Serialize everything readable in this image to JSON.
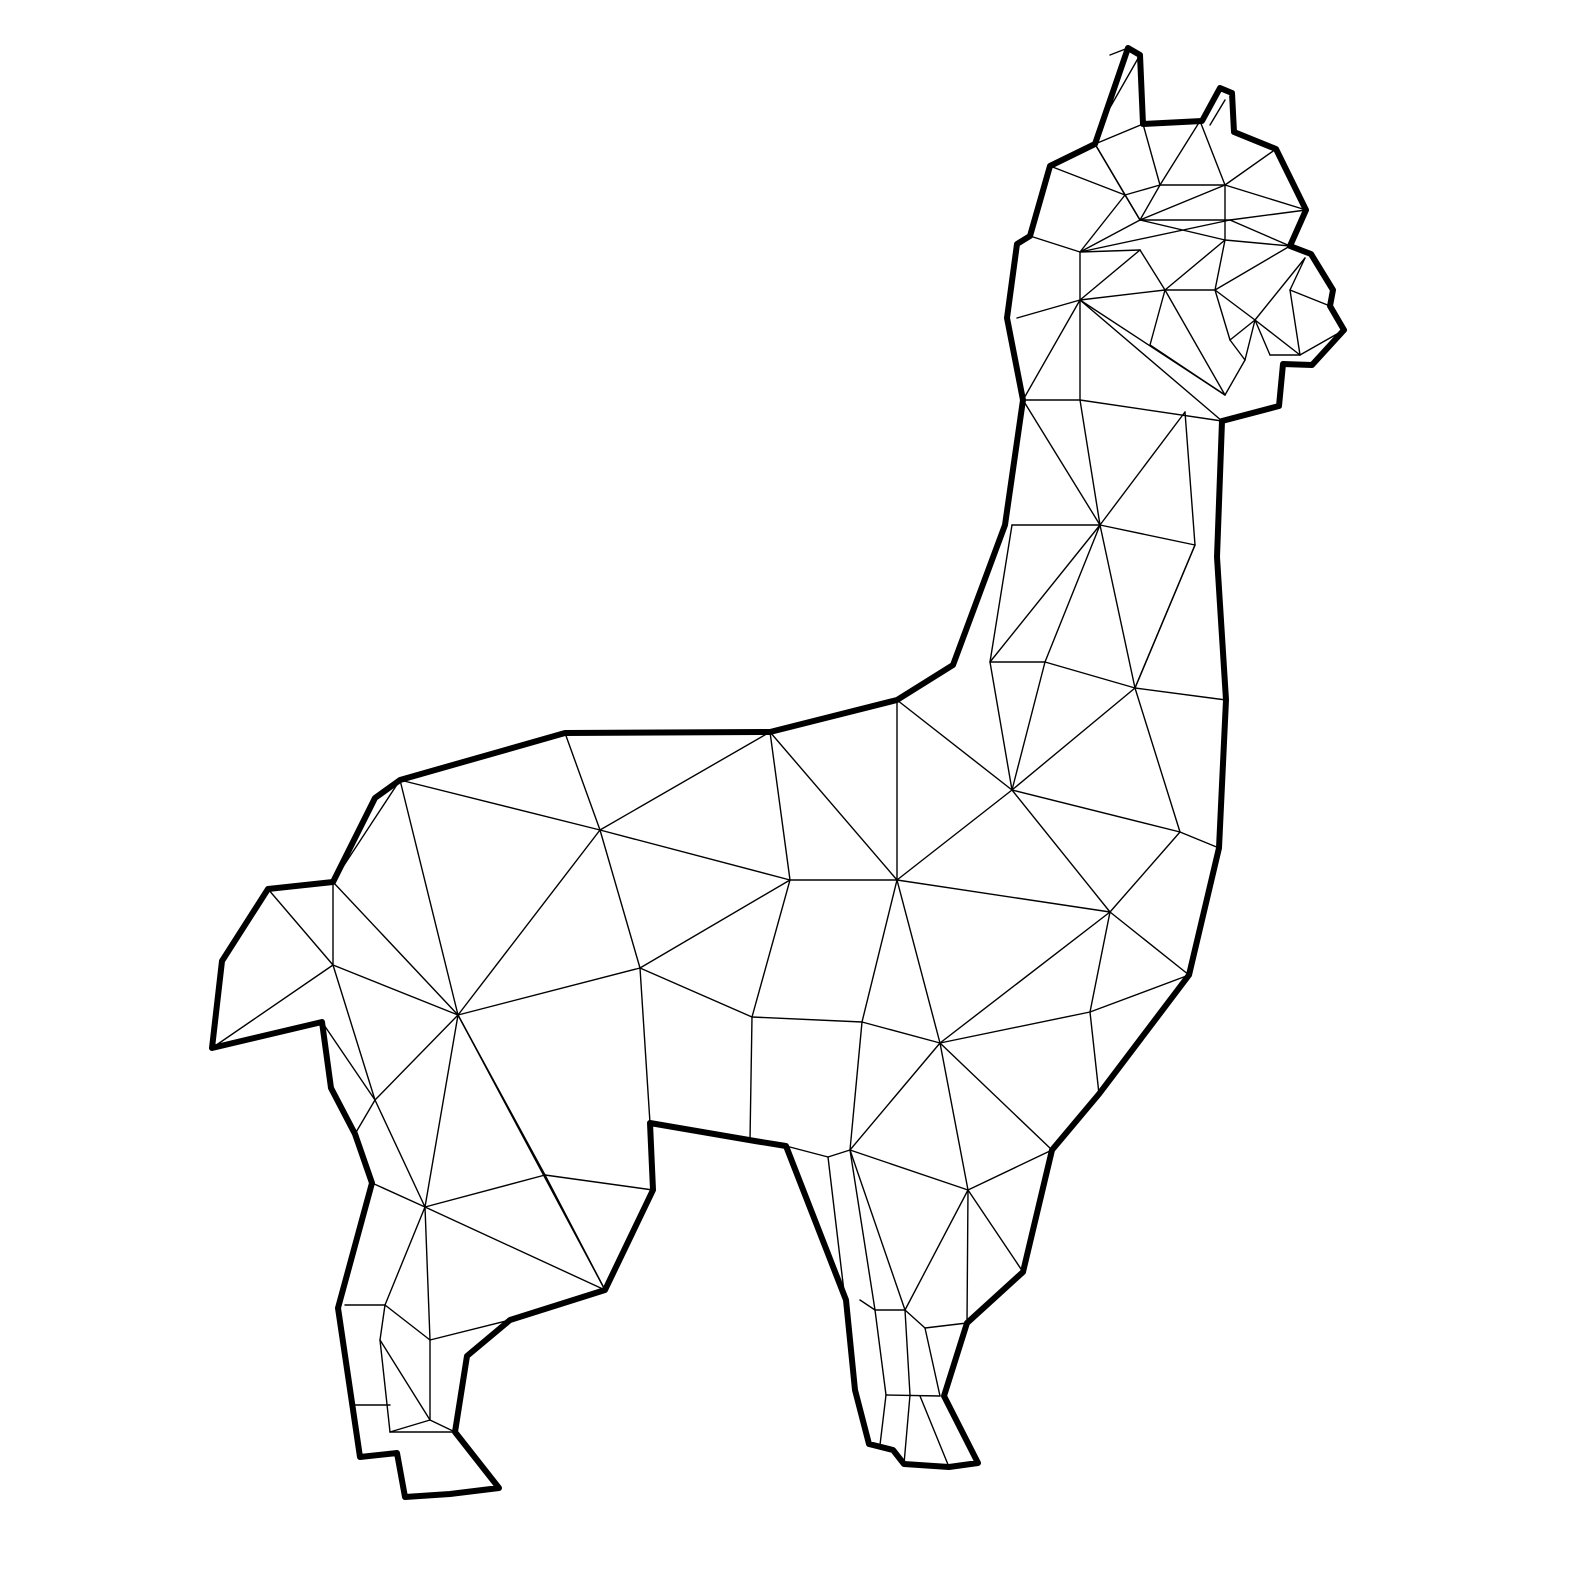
{
  "artwork": {
    "subject_icon": "llama-icon",
    "style": "low-poly line art",
    "colors": {
      "background": "#ffffff",
      "line": "#000000"
    }
  }
}
